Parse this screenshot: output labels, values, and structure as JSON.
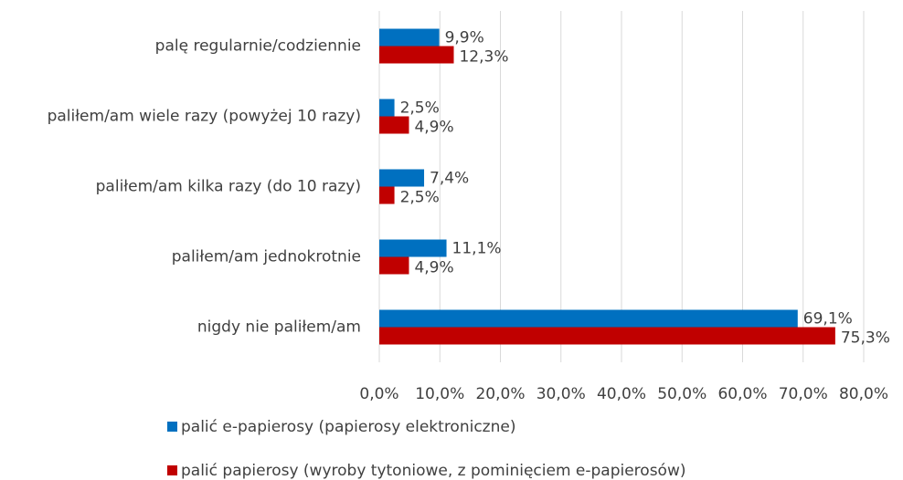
{
  "chart_data": {
    "type": "hbar",
    "categories": [
      "palę regularnie/codziennie",
      "paliłem/am wiele razy (powyżej 10 razy)",
      "paliłem/am kilka razy (do 10 razy)",
      "paliłem/am jednokrotnie",
      "nigdy nie paliłem/am"
    ],
    "series": [
      {
        "name": "palić e-papierosy (papierosy elektroniczne)",
        "color": "#0070c0",
        "values": [
          9.9,
          2.5,
          7.4,
          11.1,
          69.1
        ],
        "value_labels": [
          "9,9%",
          "2,5%",
          "7,4%",
          "11,1%",
          "69,1%"
        ]
      },
      {
        "name": "palić papierosy (wyroby tytoniowe, z pominięciem e-papierosów)",
        "color": "#c00000",
        "values": [
          12.3,
          4.9,
          2.5,
          4.9,
          75.3
        ],
        "value_labels": [
          "12,3%",
          "4,9%",
          "2,5%",
          "4,9%",
          "75,3%"
        ]
      }
    ],
    "xlim": [
      0,
      80
    ],
    "xticks": [
      {
        "value": 0,
        "label": "0,0%"
      },
      {
        "value": 10,
        "label": "10,0%"
      },
      {
        "value": 20,
        "label": "20,0%"
      },
      {
        "value": 30,
        "label": "30,0%"
      },
      {
        "value": 40,
        "label": "40,0%"
      },
      {
        "value": 50,
        "label": "50,0%"
      },
      {
        "value": 60,
        "label": "60,0%"
      },
      {
        "value": 70,
        "label": "70,0%"
      },
      {
        "value": 80,
        "label": "80,0%"
      }
    ],
    "grid": true
  }
}
